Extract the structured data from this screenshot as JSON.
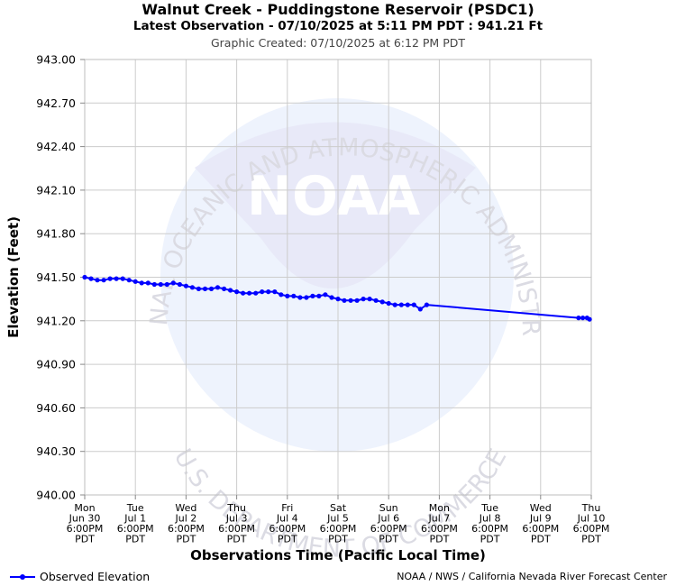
{
  "header": {
    "title": "Walnut Creek - Puddingstone Reservoir (PSDC1)",
    "latest": "Latest Observation - 07/10/2025 at 5:11 PM PDT : 941.21 Ft",
    "created": "Graphic Created: 07/10/2025 at 6:12 PM PDT"
  },
  "footer": {
    "legend_label": "Observed Elevation",
    "credit": "NOAA / NWS / California Nevada River Forecast Center"
  },
  "watermark": {
    "logo_text": "NOAA",
    "arc_top": "NATIONAL OCEANIC AND ATMOSPHERIC ADMINISTRATION",
    "arc_bottom": "U.S. DEPARTMENT OF COMMERCE"
  },
  "colors": {
    "series": "#0000ff",
    "grid": "#cccccc",
    "watermark": "#e6ebf8"
  },
  "chart_data": {
    "type": "line",
    "xlabel": "Observations Time (Pacific Local Time)",
    "ylabel": "Elevation (Feet)",
    "ylim": [
      940.0,
      943.0
    ],
    "yticks": [
      "940.00",
      "940.30",
      "940.60",
      "940.90",
      "941.20",
      "941.50",
      "941.80",
      "942.10",
      "942.40",
      "942.70",
      "943.00"
    ],
    "x_range": [
      "Mon Jun 30 6:00PM PDT",
      "Thu Jul 10 6:00PM PDT"
    ],
    "xticks": [
      [
        "Mon",
        "Jun 30",
        "6:00PM",
        "PDT"
      ],
      [
        "Tue",
        "Jul 1",
        "6:00PM",
        "PDT"
      ],
      [
        "Wed",
        "Jul 2",
        "6:00PM",
        "PDT"
      ],
      [
        "Thu",
        "Jul 3",
        "6:00PM",
        "PDT"
      ],
      [
        "Fri",
        "Jul 4",
        "6:00PM",
        "PDT"
      ],
      [
        "Sat",
        "Jul 5",
        "6:00PM",
        "PDT"
      ],
      [
        "Sun",
        "Jul 6",
        "6:00PM",
        "PDT"
      ],
      [
        "Mon",
        "Jul 7",
        "6:00PM",
        "PDT"
      ],
      [
        "Tue",
        "Jul 8",
        "6:00PM",
        "PDT"
      ],
      [
        "Wed",
        "Jul 9",
        "6:00PM",
        "PDT"
      ],
      [
        "Thu",
        "Jul 10",
        "6:00PM",
        "PDT"
      ]
    ],
    "grid": true,
    "legend": "bottom-left",
    "series": [
      {
        "name": "Observed Elevation",
        "points": [
          [
            "Jun 30 6:00PM",
            941.5
          ],
          [
            "Jun 30 9:00PM",
            941.49
          ],
          [
            "Jul 1 12:00AM",
            941.48
          ],
          [
            "Jul 1 3:00AM",
            941.48
          ],
          [
            "Jul 1 6:00AM",
            941.49
          ],
          [
            "Jul 1 9:00AM",
            941.49
          ],
          [
            "Jul 1 12:00PM",
            941.49
          ],
          [
            "Jul 1 3:00PM",
            941.48
          ],
          [
            "Jul 1 6:00PM",
            941.47
          ],
          [
            "Jul 1 9:00PM",
            941.46
          ],
          [
            "Jul 2 12:00AM",
            941.46
          ],
          [
            "Jul 2 3:00AM",
            941.45
          ],
          [
            "Jul 2 6:00AM",
            941.45
          ],
          [
            "Jul 2 9:00AM",
            941.45
          ],
          [
            "Jul 2 12:00PM",
            941.46
          ],
          [
            "Jul 2 3:00PM",
            941.45
          ],
          [
            "Jul 2 6:00PM",
            941.44
          ],
          [
            "Jul 2 9:00PM",
            941.43
          ],
          [
            "Jul 3 12:00AM",
            941.42
          ],
          [
            "Jul 3 3:00AM",
            941.42
          ],
          [
            "Jul 3 6:00AM",
            941.42
          ],
          [
            "Jul 3 9:00AM",
            941.43
          ],
          [
            "Jul 3 12:00PM",
            941.42
          ],
          [
            "Jul 3 3:00PM",
            941.41
          ],
          [
            "Jul 3 6:00PM",
            941.4
          ],
          [
            "Jul 3 9:00PM",
            941.39
          ],
          [
            "Jul 4 12:00AM",
            941.39
          ],
          [
            "Jul 4 3:00AM",
            941.39
          ],
          [
            "Jul 4 6:00AM",
            941.4
          ],
          [
            "Jul 4 9:00AM",
            941.4
          ],
          [
            "Jul 4 12:00PM",
            941.4
          ],
          [
            "Jul 4 3:00PM",
            941.38
          ],
          [
            "Jul 4 6:00PM",
            941.37
          ],
          [
            "Jul 4 9:00PM",
            941.37
          ],
          [
            "Jul 5 12:00AM",
            941.36
          ],
          [
            "Jul 5 3:00AM",
            941.36
          ],
          [
            "Jul 5 6:00AM",
            941.37
          ],
          [
            "Jul 5 9:00AM",
            941.37
          ],
          [
            "Jul 5 12:00PM",
            941.38
          ],
          [
            "Jul 5 3:00PM",
            941.36
          ],
          [
            "Jul 5 6:00PM",
            941.35
          ],
          [
            "Jul 5 9:00PM",
            941.34
          ],
          [
            "Jul 6 12:00AM",
            941.34
          ],
          [
            "Jul 6 3:00AM",
            941.34
          ],
          [
            "Jul 6 6:00AM",
            941.35
          ],
          [
            "Jul 6 9:00AM",
            941.35
          ],
          [
            "Jul 6 12:00PM",
            941.34
          ],
          [
            "Jul 6 3:00PM",
            941.33
          ],
          [
            "Jul 6 6:00PM",
            941.32
          ],
          [
            "Jul 6 9:00PM",
            941.31
          ],
          [
            "Jul 7 12:00AM",
            941.31
          ],
          [
            "Jul 7 3:00AM",
            941.31
          ],
          [
            "Jul 7 6:00AM",
            941.31
          ],
          [
            "Jul 7 9:00AM",
            941.28
          ],
          [
            "Jul 7 12:00PM",
            941.31
          ],
          [
            "Jul 10 12:00PM",
            941.22
          ],
          [
            "Jul 10 2:00PM",
            941.22
          ],
          [
            "Jul 10 4:00PM",
            941.22
          ],
          [
            "Jul 10 5:11PM",
            941.21
          ]
        ]
      }
    ]
  }
}
